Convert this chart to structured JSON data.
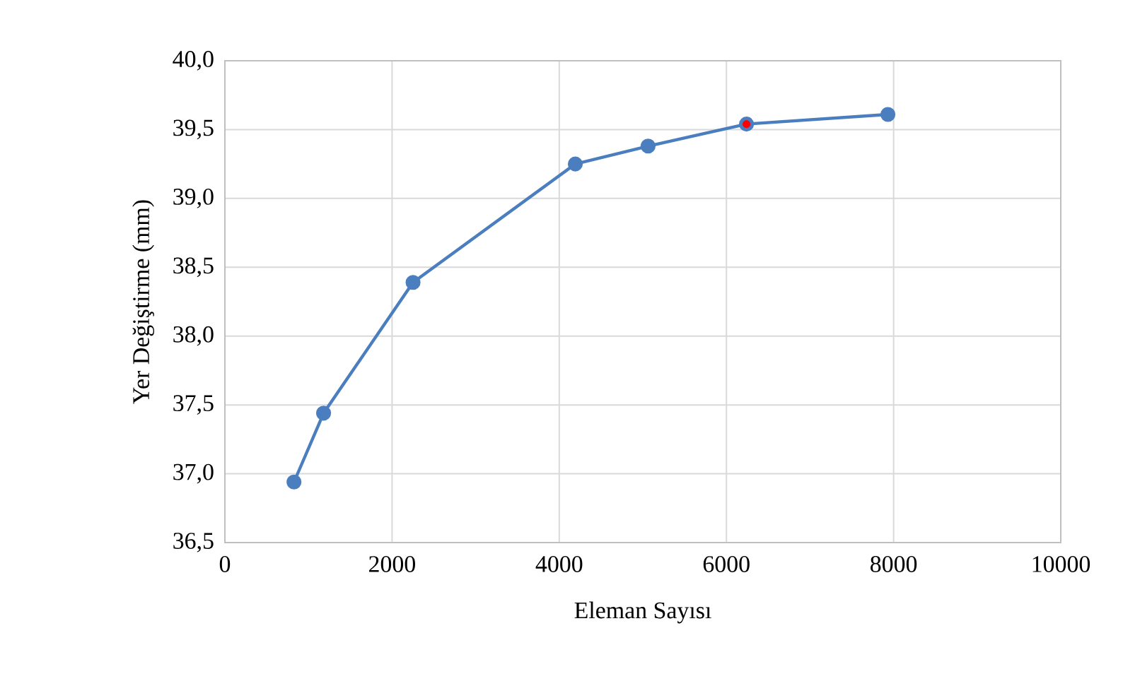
{
  "chart_data": {
    "type": "line",
    "xlabel": "Eleman Sayısı",
    "ylabel": "Yer Değiştirme (mm)",
    "x": [
      827,
      1181,
      2251,
      4192,
      5063,
      6240,
      7932
    ],
    "series": [
      {
        "color": "#4a7ebf",
        "values": [
          36.94,
          37.44,
          38.39,
          39.25,
          39.38,
          39.54,
          39.61
        ]
      },
      {
        "type": "scatter",
        "color": "#ff0000",
        "x": [
          6240
        ],
        "values": [
          39.54
        ]
      }
    ],
    "xlim": [
      0,
      10000
    ],
    "xticks": [
      0,
      2000,
      4000,
      6000,
      8000,
      10000
    ],
    "ylim": [
      36.5,
      40
    ],
    "yticks": [
      {
        "value": 36.5,
        "label": "36,5"
      },
      {
        "value": 37,
        "label": "37,0"
      },
      {
        "value": 37.5,
        "label": "37,5"
      },
      {
        "value": 38,
        "label": "38,0"
      },
      {
        "value": 38.5,
        "label": "38,5"
      },
      {
        "value": 39,
        "label": "39,0"
      },
      {
        "value": 39.5,
        "label": "39,5"
      },
      {
        "value": 40,
        "label": "40,0"
      }
    ],
    "grid": true,
    "legend": false,
    "marker": "circle",
    "line_style": "solid"
  }
}
